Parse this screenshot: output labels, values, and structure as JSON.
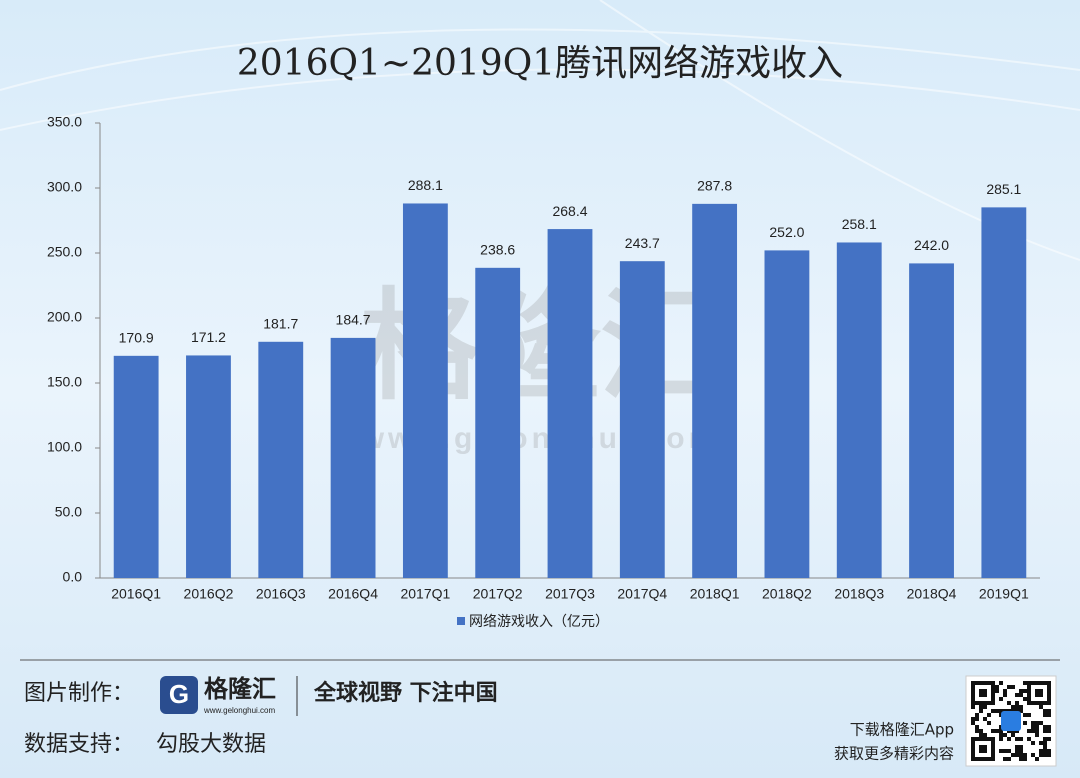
{
  "chart_data": {
    "type": "bar",
    "title": "2016Q1~2019Q1腾讯网络游戏收入",
    "categories": [
      "2016Q1",
      "2016Q2",
      "2016Q3",
      "2016Q4",
      "2017Q1",
      "2017Q2",
      "2017Q3",
      "2017Q4",
      "2018Q1",
      "2018Q2",
      "2018Q3",
      "2018Q4",
      "2019Q1"
    ],
    "series": [
      {
        "name": "网络游戏收入（亿元）",
        "color": "#4472c4",
        "values": [
          170.9,
          171.2,
          181.7,
          184.7,
          288.1,
          238.6,
          268.4,
          243.7,
          287.8,
          252.0,
          258.1,
          242.0,
          285.1
        ],
        "value_labels": [
          "170.9",
          "171.2",
          "181.7",
          "184.7",
          "288.1",
          "238.6",
          "268.4",
          "243.7",
          "287.8",
          "252.0",
          "258.1",
          "242.0",
          "285.1"
        ]
      }
    ],
    "ylim": [
      0,
      350
    ],
    "yticks": [
      {
        "value": 0,
        "label": "0.0"
      },
      {
        "value": 50,
        "label": "50.0"
      },
      {
        "value": 100,
        "label": "100.0"
      },
      {
        "value": 150,
        "label": "150.0"
      },
      {
        "value": 200,
        "label": "200.0"
      },
      {
        "value": 250,
        "label": "250.0"
      },
      {
        "value": 300,
        "label": "300.0"
      },
      {
        "value": 350,
        "label": "350.0"
      }
    ],
    "legend": "bottom",
    "grid": false
  },
  "watermark": {
    "brand": "格隆汇",
    "url": "www.gelonghui.com"
  },
  "footer": {
    "made_by_label": "图片制作：",
    "logo_name": "格隆汇",
    "logo_url": "www.gelonghui.com",
    "slogan": "全球视野 下注中国",
    "data_label": "数据支持：",
    "data_source": "勾股大数据",
    "download": "下载格隆汇App",
    "more": "获取更多精彩内容"
  }
}
